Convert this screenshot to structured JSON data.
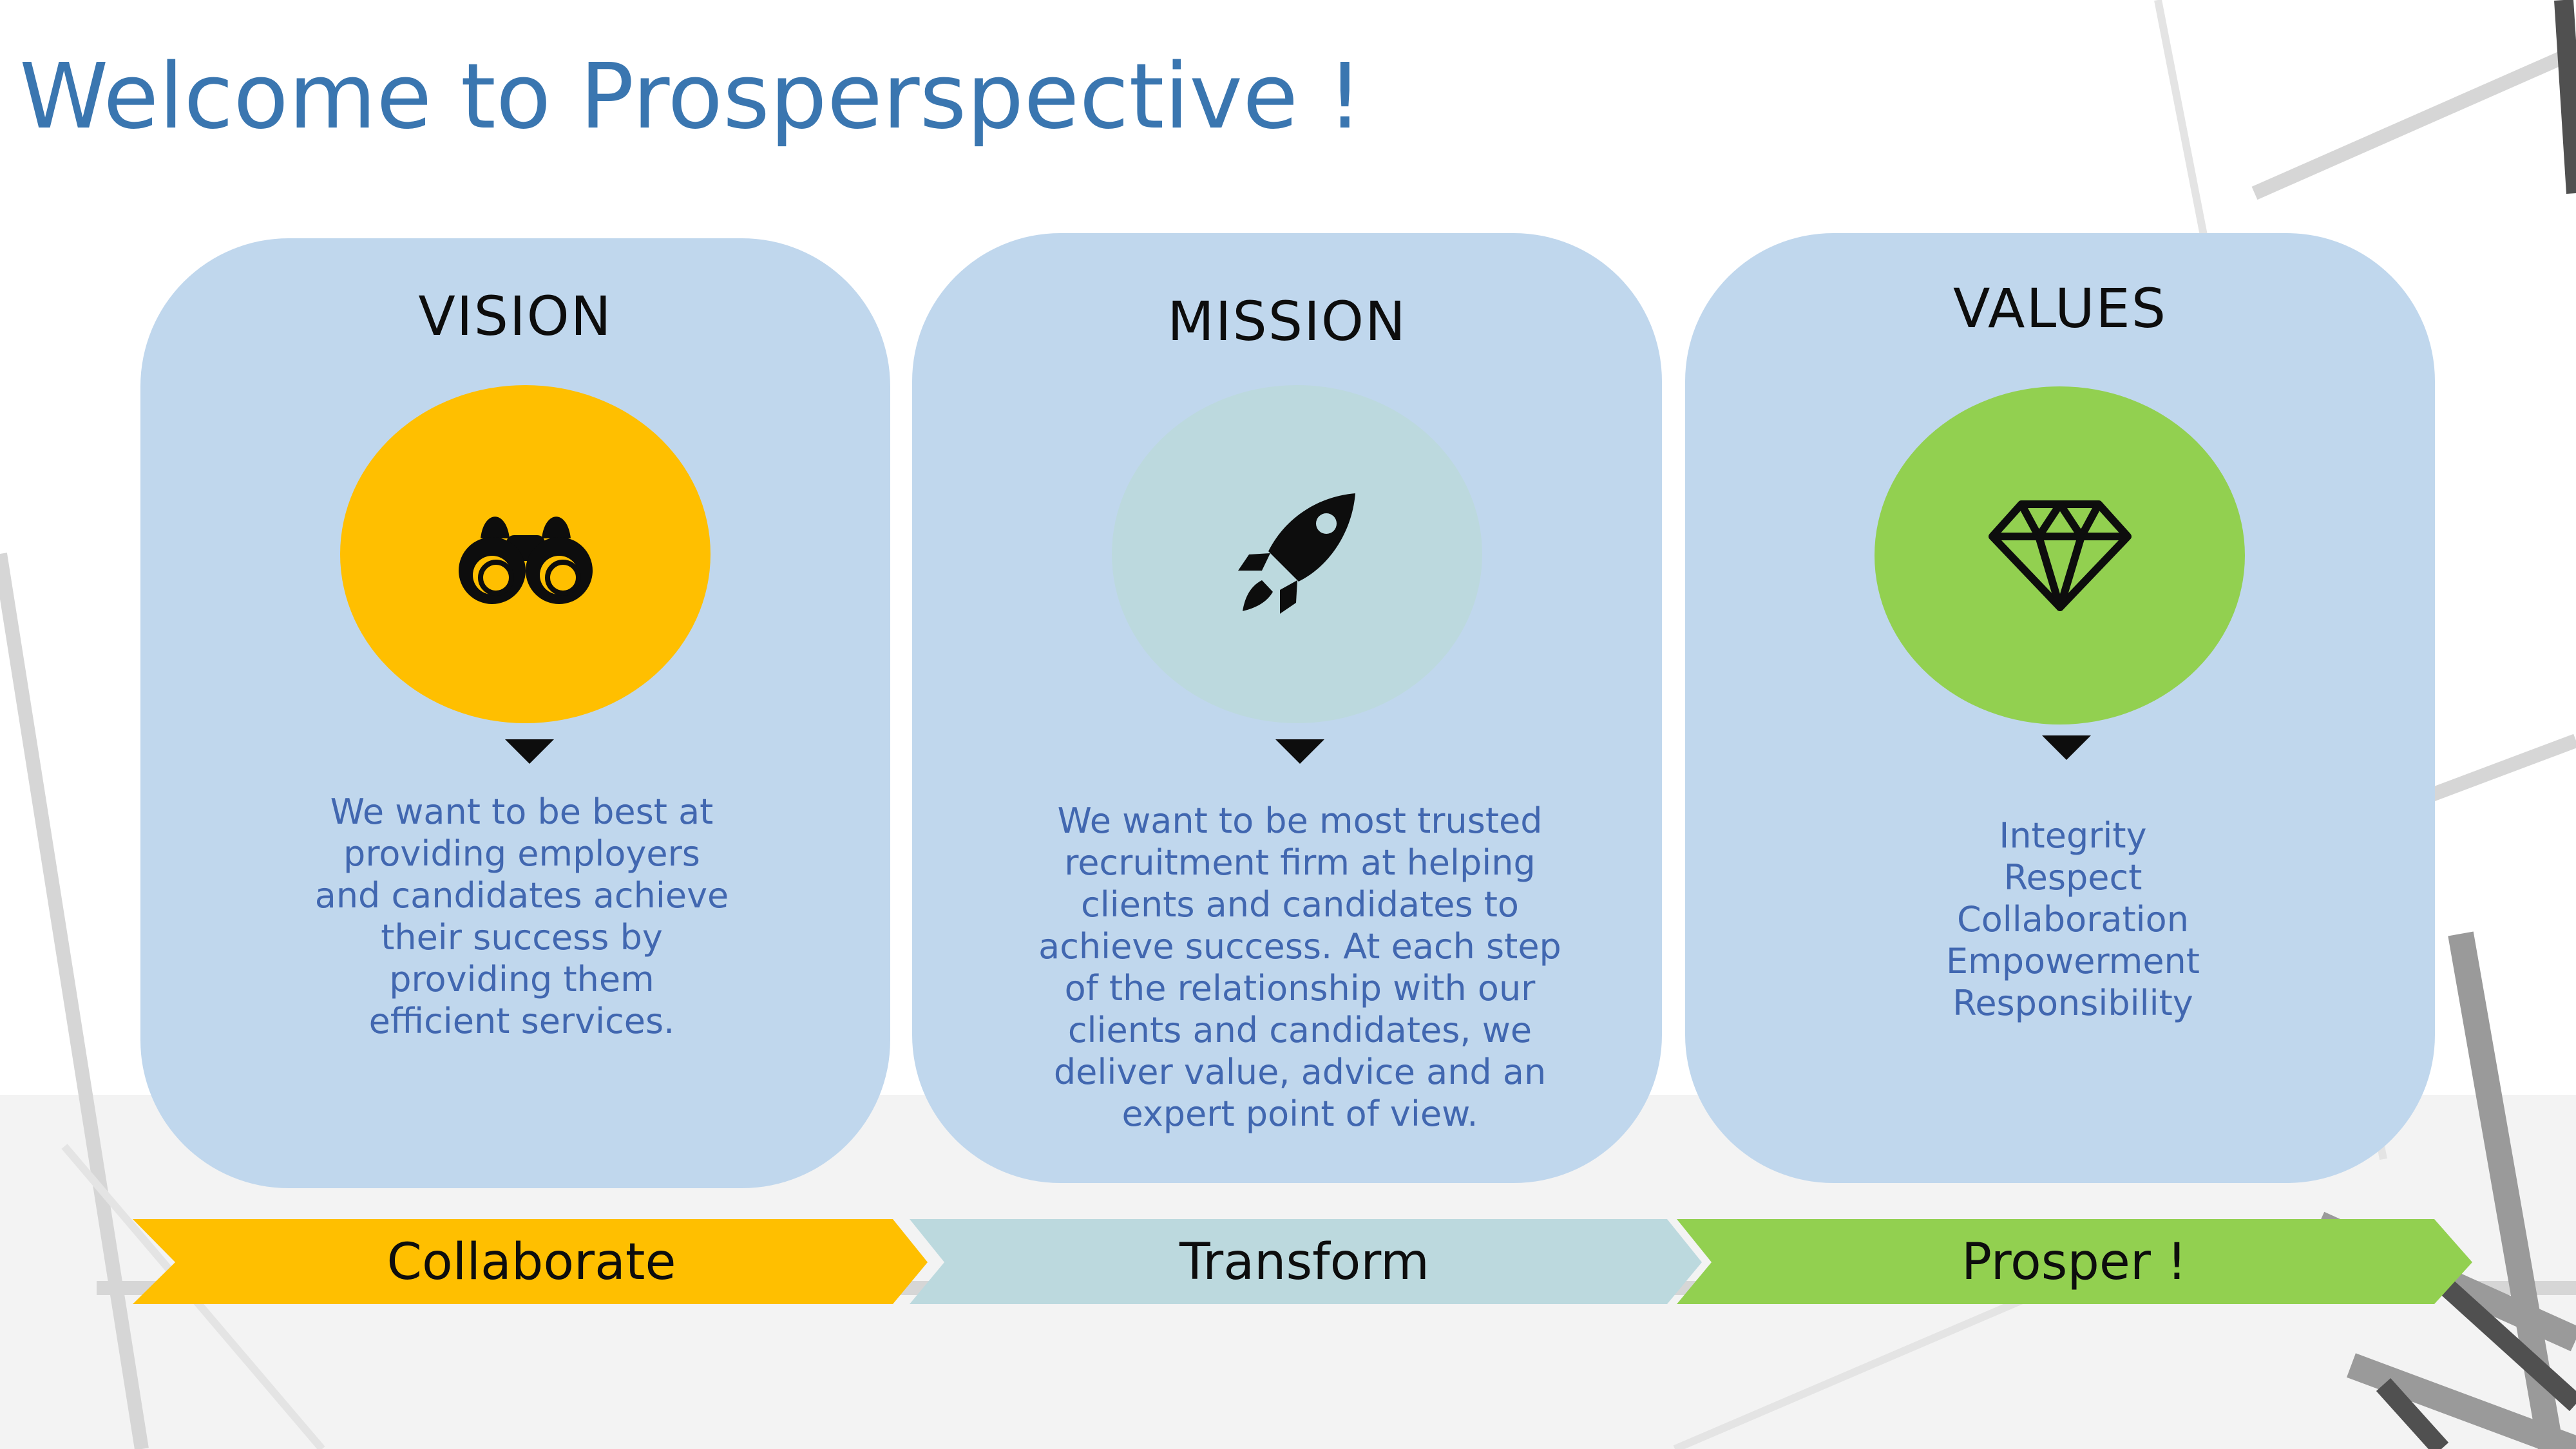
{
  "slide": {
    "title": "Welcome to Prosperspective !"
  },
  "cards": [
    {
      "heading": "VISION",
      "icon": "binoculars-icon",
      "circle_color": "#ffbf00",
      "text": "We want to be best at\nproviding employers\nand candidates achieve\ntheir success by\nproviding them\nefficient services."
    },
    {
      "heading": "MISSION",
      "icon": "rocket-icon",
      "circle_color": "#bcd9de",
      "text": "We want to be most trusted\nrecruitment firm at helping\nclients and candidates to\nachieve success. At each step\nof the relationship with our\nclients and candidates, we\ndeliver value, advice and an\nexpert point of view."
    },
    {
      "heading": "VALUES",
      "icon": "diamond-icon",
      "circle_color": "#92d050",
      "text": "Integrity\nRespect\nCollaboration\nEmpowerment\nResponsibility"
    }
  ],
  "process": [
    {
      "label": "Collaborate",
      "color": "#ffbf00"
    },
    {
      "label": "Transform",
      "color": "#bcd9de"
    },
    {
      "label": "Prosper !",
      "color": "#92d050"
    }
  ],
  "colors": {
    "title": "#3a76b0",
    "card_background": "#c0d7ed",
    "body_text": "#4167b0"
  }
}
